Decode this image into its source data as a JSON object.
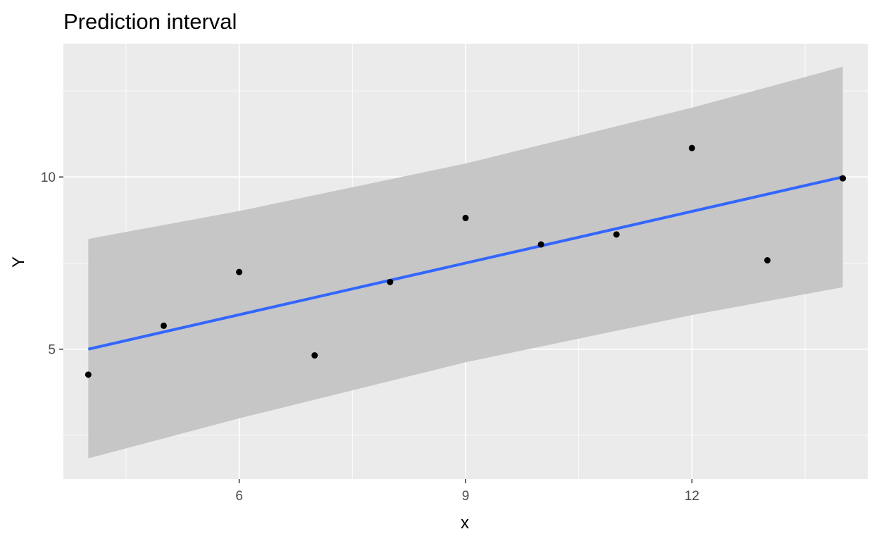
{
  "chart_data": {
    "type": "scatter",
    "title": "Prediction interval",
    "xlabel": "x",
    "ylabel": "Y",
    "xlim": [
      3.67,
      14.33
    ],
    "ylim": [
      1.23,
      13.87
    ],
    "x_ticks": [
      6,
      9,
      12
    ],
    "y_ticks": [
      5,
      10
    ],
    "grid": true,
    "points": [
      {
        "x": 4,
        "y": 4.26
      },
      {
        "x": 5,
        "y": 5.68
      },
      {
        "x": 6,
        "y": 7.24
      },
      {
        "x": 7,
        "y": 4.82
      },
      {
        "x": 8,
        "y": 6.95
      },
      {
        "x": 9,
        "y": 8.81
      },
      {
        "x": 10,
        "y": 8.04
      },
      {
        "x": 11,
        "y": 8.33
      },
      {
        "x": 12,
        "y": 10.84
      },
      {
        "x": 13,
        "y": 7.58
      },
      {
        "x": 14,
        "y": 9.96
      }
    ],
    "fit_line": {
      "x": [
        4,
        14
      ],
      "y": [
        5.0,
        10.0
      ]
    },
    "prediction_band": {
      "x": [
        4,
        6,
        9,
        12,
        14
      ],
      "lower": [
        1.83,
        2.99,
        4.62,
        5.99,
        6.8
      ],
      "upper": [
        8.2,
        9.01,
        10.39,
        12.01,
        13.2
      ]
    },
    "colors": {
      "panel": "#ebebeb",
      "grid_major": "#ffffff",
      "band": "#c6c6c6",
      "line": "#3366ff",
      "points": "#000000"
    }
  }
}
